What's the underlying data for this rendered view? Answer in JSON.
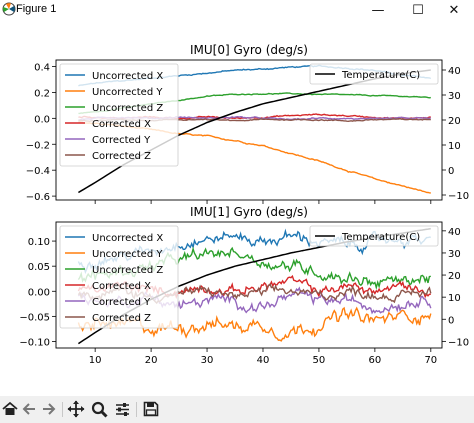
{
  "window": {
    "title": "Figure 1",
    "minimize_glyph": "—",
    "maximize_glyph": "☐",
    "close_glyph": "✕",
    "icon": "matplotlib-icon"
  },
  "toolbar": {
    "buttons": [
      {
        "name": "home-icon",
        "glyph": "⌂"
      },
      {
        "name": "back-arrow-icon",
        "glyph": "←"
      },
      {
        "name": "forward-arrow-icon",
        "glyph": "→"
      },
      {
        "name": "pan-icon",
        "glyph": "✥"
      },
      {
        "name": "zoom-icon",
        "glyph": "🔍"
      },
      {
        "name": "configure-subplots-icon",
        "glyph": "☰"
      },
      {
        "name": "save-icon",
        "glyph": "💾"
      }
    ]
  },
  "colors": {
    "uncorrected_x": "#1f77b4",
    "uncorrected_y": "#ff7f0e",
    "uncorrected_z": "#2ca02c",
    "corrected_x": "#d62728",
    "corrected_y": "#9467bd",
    "corrected_z": "#8c564b",
    "temperature": "#000000"
  },
  "chart_data": [
    {
      "type": "line",
      "title": "IMU[0] Gyro (deg/s)",
      "xlim": [
        3,
        72
      ],
      "ylim": [
        -0.63,
        0.45
      ],
      "y2lim": [
        -12,
        44
      ],
      "yticks": [
        "0.4",
        "0.2",
        "0.0",
        "−0.2",
        "−0.4",
        "−0.6"
      ],
      "ytick_values": [
        0.4,
        0.2,
        0.0,
        -0.2,
        -0.4,
        -0.6
      ],
      "y2ticks": [
        "40",
        "30",
        "20",
        "10",
        "0",
        "−10"
      ],
      "y2tick_values": [
        40,
        30,
        20,
        10,
        0,
        -10
      ],
      "xticks": [],
      "x": [
        7,
        10,
        15,
        20,
        25,
        30,
        35,
        40,
        45,
        50,
        55,
        60,
        65,
        70
      ],
      "series": [
        {
          "name": "Uncorrected X",
          "color": "#1f77b4",
          "noise": 0.006,
          "values": [
            0.25,
            0.27,
            0.29,
            0.31,
            0.33,
            0.35,
            0.37,
            0.38,
            0.395,
            0.4,
            0.39,
            0.37,
            0.33,
            0.31
          ]
        },
        {
          "name": "Uncorrected Y",
          "color": "#ff7f0e",
          "noise": 0.006,
          "values": [
            -0.03,
            -0.04,
            -0.06,
            -0.09,
            -0.12,
            -0.14,
            -0.17,
            -0.21,
            -0.27,
            -0.33,
            -0.4,
            -0.47,
            -0.52,
            -0.58
          ]
        },
        {
          "name": "Uncorrected Z",
          "color": "#2ca02c",
          "noise": 0.004,
          "values": [
            0.04,
            0.05,
            0.08,
            0.11,
            0.14,
            0.17,
            0.185,
            0.19,
            0.19,
            0.185,
            0.18,
            0.175,
            0.17,
            0.16
          ]
        },
        {
          "name": "Corrected X",
          "color": "#d62728",
          "noise": 0.006,
          "values": [
            0.01,
            0.01,
            0.0,
            0.01,
            0.0,
            0.01,
            0.0,
            0.01,
            0.02,
            0.03,
            0.02,
            0.01,
            0.0,
            0.01
          ]
        },
        {
          "name": "Corrected Y",
          "color": "#9467bd",
          "noise": 0.006,
          "values": [
            -0.01,
            0.0,
            0.01,
            0.0,
            0.01,
            0.0,
            0.01,
            0.0,
            -0.01,
            0.0,
            0.0,
            -0.01,
            0.0,
            0.0
          ]
        },
        {
          "name": "Corrected Z",
          "color": "#8c564b",
          "noise": 0.005,
          "values": [
            -0.02,
            -0.02,
            -0.01,
            -0.02,
            -0.01,
            -0.01,
            -0.02,
            -0.01,
            -0.01,
            -0.01,
            -0.02,
            -0.01,
            -0.01,
            -0.01
          ]
        }
      ],
      "secondary": {
        "name": "Temperature(C)",
        "color": "#000000",
        "x": [
          7,
          10,
          15,
          20,
          25,
          30,
          35,
          40,
          45,
          50,
          55,
          60,
          65,
          70
        ],
        "values": [
          -9,
          -5,
          2,
          8,
          14,
          19,
          23,
          26.5,
          29,
          31.5,
          34,
          36.5,
          38.5,
          40
        ]
      },
      "legend": "upper-left",
      "legend2": "upper-right",
      "grid": false
    },
    {
      "type": "line",
      "title": "IMU[1] Gyro (deg/s)",
      "xlim": [
        3,
        72
      ],
      "ylim": [
        -0.113,
        0.138
      ],
      "y2lim": [
        -13,
        44
      ],
      "yticks": [
        "0.10",
        "0.05",
        "0.00",
        "−0.05",
        "−0.10"
      ],
      "ytick_values": [
        0.1,
        0.05,
        0.0,
        -0.05,
        -0.1
      ],
      "y2ticks": [
        "40",
        "30",
        "20",
        "10",
        "0",
        "−10"
      ],
      "y2tick_values": [
        40,
        30,
        20,
        10,
        0,
        -10
      ],
      "xticks": [
        "10",
        "20",
        "30",
        "40",
        "50",
        "60",
        "70"
      ],
      "xtick_values": [
        10,
        20,
        30,
        40,
        50,
        60,
        70
      ],
      "x": [
        7,
        10,
        15,
        20,
        25,
        30,
        35,
        40,
        45,
        50,
        55,
        60,
        65,
        70
      ],
      "series": [
        {
          "name": "Uncorrected X",
          "color": "#1f77b4",
          "noise": 0.012,
          "values": [
            0.06,
            0.065,
            0.07,
            0.08,
            0.1,
            0.105,
            0.11,
            0.1,
            0.11,
            0.1,
            0.09,
            0.1,
            0.105,
            0.1
          ]
        },
        {
          "name": "Uncorrected Y",
          "color": "#ff7f0e",
          "noise": 0.015,
          "values": [
            -0.07,
            -0.065,
            -0.07,
            -0.075,
            -0.07,
            -0.06,
            -0.07,
            -0.065,
            -0.08,
            -0.06,
            -0.05,
            -0.06,
            -0.05,
            -0.04
          ]
        },
        {
          "name": "Uncorrected Z",
          "color": "#2ca02c",
          "noise": 0.013,
          "values": [
            0.02,
            0.03,
            0.04,
            0.05,
            0.06,
            0.07,
            0.08,
            0.06,
            0.05,
            0.04,
            0.03,
            0.02,
            0.02,
            0.03
          ]
        },
        {
          "name": "Corrected X",
          "color": "#d62728",
          "noise": 0.01,
          "values": [
            0.0,
            0.0,
            0.01,
            0.0,
            0.0,
            0.01,
            0.0,
            0.01,
            0.02,
            0.0,
            0.01,
            0.0,
            0.01,
            0.0
          ]
        },
        {
          "name": "Corrected Y",
          "color": "#9467bd",
          "noise": 0.012,
          "values": [
            -0.01,
            -0.02,
            -0.02,
            -0.01,
            -0.03,
            -0.02,
            -0.02,
            -0.03,
            -0.01,
            -0.02,
            -0.02,
            -0.03,
            -0.02,
            -0.01
          ]
        },
        {
          "name": "Corrected Z",
          "color": "#8c564b",
          "noise": 0.01,
          "values": [
            -0.005,
            -0.01,
            0.0,
            -0.01,
            -0.005,
            0.0,
            -0.01,
            -0.005,
            0.0,
            -0.01,
            0.0,
            -0.005,
            -0.01,
            0.0
          ]
        }
      ],
      "secondary": {
        "name": "Temperature(C)",
        "color": "#000000",
        "x": [
          7,
          10,
          15,
          20,
          25,
          30,
          35,
          40,
          45,
          50,
          55,
          60,
          65,
          70
        ],
        "values": [
          -11,
          -6,
          2,
          9,
          15,
          20,
          24,
          27,
          30,
          32.5,
          35,
          37,
          39,
          41
        ]
      },
      "legend": "upper-left",
      "legend2": "upper-right",
      "grid": false
    }
  ]
}
